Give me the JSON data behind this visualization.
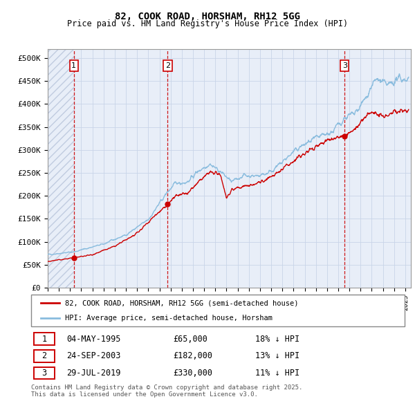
{
  "title": "82, COOK ROAD, HORSHAM, RH12 5GG",
  "subtitle": "Price paid vs. HM Land Registry's House Price Index (HPI)",
  "ylim": [
    0,
    520000
  ],
  "yticks": [
    0,
    50000,
    100000,
    150000,
    200000,
    250000,
    300000,
    350000,
    400000,
    450000,
    500000
  ],
  "ytick_labels": [
    "£0",
    "£50K",
    "£100K",
    "£150K",
    "£200K",
    "£250K",
    "£300K",
    "£350K",
    "£400K",
    "£450K",
    "£500K"
  ],
  "xlim_start": 1993.0,
  "xlim_end": 2025.5,
  "legend_line1": "82, COOK ROAD, HORSHAM, RH12 5GG (semi-detached house)",
  "legend_line2": "HPI: Average price, semi-detached house, Horsham",
  "sale_color": "#cc0000",
  "hpi_color": "#89bcde",
  "vline_color": "#cc0000",
  "bg_color": "#e8eef8",
  "hatch_color": "#c0cce0",
  "grid_color": "#c8d4e8",
  "sales": [
    {
      "date": 1995.34,
      "price": 65000,
      "label": "1"
    },
    {
      "date": 2003.73,
      "price": 182000,
      "label": "2"
    },
    {
      "date": 2019.57,
      "price": 330000,
      "label": "3"
    }
  ],
  "table_rows": [
    {
      "num": "1",
      "date": "04-MAY-1995",
      "price": "£65,000",
      "note": "18% ↓ HPI"
    },
    {
      "num": "2",
      "date": "24-SEP-2003",
      "price": "£182,000",
      "note": "13% ↓ HPI"
    },
    {
      "num": "3",
      "date": "29-JUL-2019",
      "price": "£330,000",
      "note": "11% ↓ HPI"
    }
  ],
  "footnote": "Contains HM Land Registry data © Crown copyright and database right 2025.\nThis data is licensed under the Open Government Licence v3.0.",
  "hpi_anchor_points": [
    [
      1993.0,
      72000
    ],
    [
      1995.34,
      78000
    ],
    [
      1998.0,
      95000
    ],
    [
      2000.0,
      115000
    ],
    [
      2002.0,
      148000
    ],
    [
      2003.73,
      209000
    ],
    [
      2004.5,
      228000
    ],
    [
      2005.5,
      230000
    ],
    [
      2006.5,
      255000
    ],
    [
      2007.5,
      270000
    ],
    [
      2008.5,
      252000
    ],
    [
      2009.5,
      230000
    ],
    [
      2010.5,
      245000
    ],
    [
      2011.5,
      243000
    ],
    [
      2012.5,
      248000
    ],
    [
      2013.5,
      262000
    ],
    [
      2014.5,
      285000
    ],
    [
      2015.5,
      305000
    ],
    [
      2016.5,
      318000
    ],
    [
      2017.5,
      330000
    ],
    [
      2018.5,
      340000
    ],
    [
      2019.57,
      370000
    ],
    [
      2020.5,
      378000
    ],
    [
      2021.0,
      395000
    ],
    [
      2021.5,
      415000
    ],
    [
      2022.0,
      440000
    ],
    [
      2022.5,
      455000
    ],
    [
      2023.0,
      445000
    ],
    [
      2023.5,
      440000
    ],
    [
      2024.0,
      450000
    ],
    [
      2024.5,
      455000
    ],
    [
      2025.3,
      455000
    ]
  ],
  "sale_anchor_points": [
    [
      1993.0,
      57000
    ],
    [
      1995.34,
      65000
    ],
    [
      1997.0,
      72000
    ],
    [
      1999.0,
      90000
    ],
    [
      2001.0,
      118000
    ],
    [
      2002.5,
      155000
    ],
    [
      2003.73,
      182000
    ],
    [
      2004.5,
      200000
    ],
    [
      2005.5,
      205000
    ],
    [
      2006.5,
      230000
    ],
    [
      2007.5,
      252000
    ],
    [
      2008.5,
      245000
    ],
    [
      2009.0,
      195000
    ],
    [
      2009.5,
      215000
    ],
    [
      2010.5,
      220000
    ],
    [
      2011.5,
      225000
    ],
    [
      2012.5,
      235000
    ],
    [
      2013.5,
      248000
    ],
    [
      2014.5,
      268000
    ],
    [
      2015.5,
      285000
    ],
    [
      2016.5,
      300000
    ],
    [
      2017.5,
      315000
    ],
    [
      2018.5,
      325000
    ],
    [
      2019.57,
      330000
    ],
    [
      2020.5,
      345000
    ],
    [
      2021.0,
      360000
    ],
    [
      2021.5,
      375000
    ],
    [
      2022.0,
      385000
    ],
    [
      2022.5,
      375000
    ],
    [
      2023.0,
      370000
    ],
    [
      2023.5,
      375000
    ],
    [
      2024.0,
      385000
    ],
    [
      2024.5,
      385000
    ],
    [
      2025.3,
      390000
    ]
  ]
}
